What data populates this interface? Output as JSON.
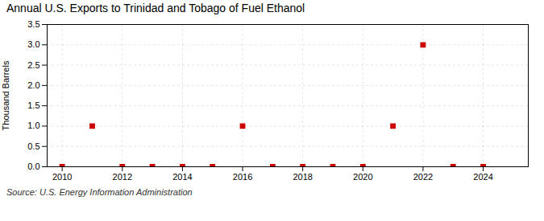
{
  "chart_data": {
    "type": "scatter",
    "title": "Annual U.S. Exports to Trinidad and Tobago of Fuel Ethanol",
    "ylabel": "Thousand Barrels",
    "source": "Source: U.S. Energy Information Administration",
    "x": [
      2010,
      2011,
      2012,
      2013,
      2014,
      2015,
      2016,
      2017,
      2018,
      2019,
      2020,
      2021,
      2022,
      2023,
      2024
    ],
    "values": [
      0.0,
      1.0,
      0.0,
      0.0,
      0.0,
      0.0,
      1.0,
      0.0,
      0.0,
      0.0,
      0.0,
      1.0,
      3.0,
      0.0,
      0.0
    ],
    "color": "#cc0000",
    "marker": "square",
    "xlim": [
      2009.5,
      2025.5
    ],
    "xticks": [
      2010,
      2012,
      2014,
      2016,
      2018,
      2020,
      2022,
      2024
    ],
    "ylim": [
      0.0,
      3.5
    ],
    "yticks": [
      {
        "value": 0.0,
        "label": "0.0"
      },
      {
        "value": 0.5,
        "label": "0.5"
      },
      {
        "value": 1.0,
        "label": "1.0"
      },
      {
        "value": 1.5,
        "label": "1.5"
      },
      {
        "value": 2.0,
        "label": "2.0"
      },
      {
        "value": 2.5,
        "label": "2.5"
      },
      {
        "value": 3.0,
        "label": "3.0"
      },
      {
        "value": 3.5,
        "label": "3.5"
      }
    ],
    "grid": true
  }
}
